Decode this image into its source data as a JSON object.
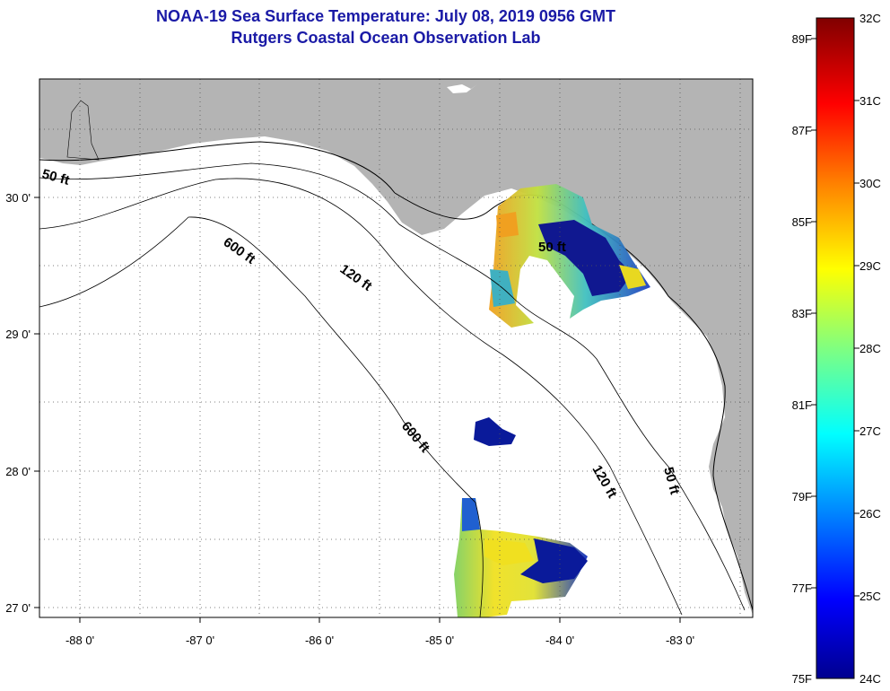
{
  "title": {
    "line1": "NOAA-19 Sea Surface Temperature:  July 08, 2019 0956 GMT",
    "line2": "Rutgers Coastal Ocean Observation Lab"
  },
  "map": {
    "lon_ticks": [
      "-88 0'",
      "-87 0'",
      "-86 0'",
      "-85 0'",
      "-84 0'",
      "-83 0'"
    ],
    "lat_ticks": [
      "30 0'",
      "29 0'",
      "28 0'",
      "27 0'"
    ],
    "contour_labels": [
      "50 ft",
      "120 ft",
      "600 ft",
      "600 ft",
      "50 ft",
      "120 ft",
      "50 ft"
    ],
    "colors": {
      "land": "#b4b4b4",
      "water": "#ffffff",
      "no_data": "#ffffff"
    }
  },
  "colorbar": {
    "celsius_labels": [
      "32C",
      "31C",
      "30C",
      "29C",
      "28C",
      "27C",
      "26C",
      "25C",
      "24C"
    ],
    "fahrenheit_labels": [
      "89F",
      "87F",
      "85F",
      "83F",
      "81F",
      "79F",
      "77F",
      "75F"
    ],
    "palette": [
      "#00008f",
      "#0000ff",
      "#0080ff",
      "#00ffff",
      "#80ff80",
      "#ffff00",
      "#ff8000",
      "#ff0000",
      "#800000"
    ]
  }
}
